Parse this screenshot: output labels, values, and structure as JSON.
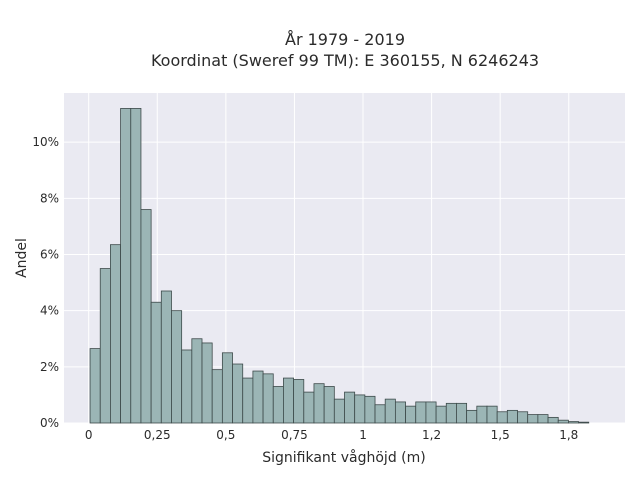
{
  "chart_data": {
    "type": "bar",
    "title_line1": "År 1979 - 2019",
    "title_line2": "Koordinat (Sweref 99 TM): E 360155, N 6246243",
    "xlabel": "Signifikant våghöjd (m)",
    "ylabel": "Andel",
    "xlim": [
      -0.09,
      1.955
    ],
    "ylim": [
      0,
      11.75
    ],
    "x_ticks": [
      {
        "value": 0,
        "label": "0"
      },
      {
        "value": 0.25,
        "label": "0,25"
      },
      {
        "value": 0.5,
        "label": "0,5"
      },
      {
        "value": 0.75,
        "label": "0,75"
      },
      {
        "value": 1,
        "label": "1"
      },
      {
        "value": 1.25,
        "label": "1,2"
      },
      {
        "value": 1.5,
        "label": "1,5"
      },
      {
        "value": 1.75,
        "label": "1,8"
      }
    ],
    "y_ticks": [
      {
        "value": 0,
        "label": "0%"
      },
      {
        "value": 2,
        "label": "2%"
      },
      {
        "value": 4,
        "label": "4%"
      },
      {
        "value": 6,
        "label": "6%"
      },
      {
        "value": 8,
        "label": "8%"
      },
      {
        "value": 10,
        "label": "10%"
      }
    ],
    "bin_start": 0.005,
    "bin_width": 0.0371,
    "values": [
      2.65,
      5.5,
      6.35,
      11.2,
      11.2,
      7.6,
      4.3,
      4.7,
      4.0,
      2.6,
      3.0,
      2.85,
      1.9,
      2.5,
      2.1,
      1.6,
      1.85,
      1.75,
      1.3,
      1.6,
      1.55,
      1.1,
      1.4,
      1.3,
      0.85,
      1.1,
      1.0,
      0.95,
      0.65,
      0.85,
      0.75,
      0.6,
      0.75,
      0.75,
      0.6,
      0.7,
      0.7,
      0.45,
      0.6,
      0.6,
      0.4,
      0.45,
      0.4,
      0.3,
      0.3,
      0.2,
      0.1,
      0.05,
      0.03,
      0.0
    ],
    "grid": true,
    "bar_color": "#9bb5b5",
    "edge_color": "#3d4a4a",
    "plot_bg": "#eaeaf2"
  }
}
